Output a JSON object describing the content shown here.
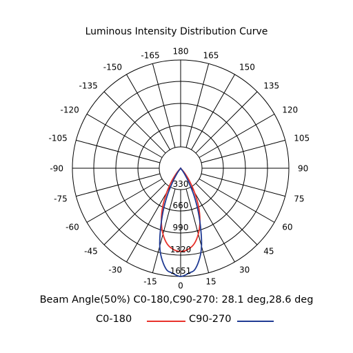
{
  "chart_data": {
    "type": "polar",
    "title": "Luminous Intensity Distribution Curve",
    "angle_labels": [
      "180",
      "165",
      "150",
      "135",
      "120",
      "105",
      "90",
      "75",
      "60",
      "45",
      "30",
      "15",
      "0",
      "-15",
      "-30",
      "-45",
      "-60",
      "-75",
      "-90",
      "-105",
      "-120",
      "-135",
      "-150",
      "-165"
    ],
    "radial_labels": [
      "330",
      "660",
      "990",
      "1320",
      "1651"
    ],
    "radial_max": 1651,
    "beam_angle_text": "Beam Angle(50%) C0-180,C90-270: 28.1 deg,28.6 deg",
    "series": [
      {
        "name": "C0-180",
        "color": "#e8312a",
        "points": [
          [
            0,
            1270
          ],
          [
            5,
            1245
          ],
          [
            10,
            1175
          ],
          [
            15,
            1040
          ],
          [
            20,
            860
          ],
          [
            25,
            650
          ],
          [
            30,
            420
          ],
          [
            35,
            230
          ],
          [
            40,
            90
          ],
          [
            45,
            0
          ]
        ]
      },
      {
        "name": "C90-270",
        "color": "#1f3a93",
        "points": [
          [
            0,
            1651
          ],
          [
            5,
            1600
          ],
          [
            8,
            1560
          ],
          [
            12,
            1400
          ],
          [
            15,
            1230
          ],
          [
            18,
            1000
          ],
          [
            22,
            720
          ],
          [
            26,
            470
          ],
          [
            30,
            250
          ],
          [
            35,
            90
          ],
          [
            40,
            0
          ]
        ]
      }
    ]
  }
}
